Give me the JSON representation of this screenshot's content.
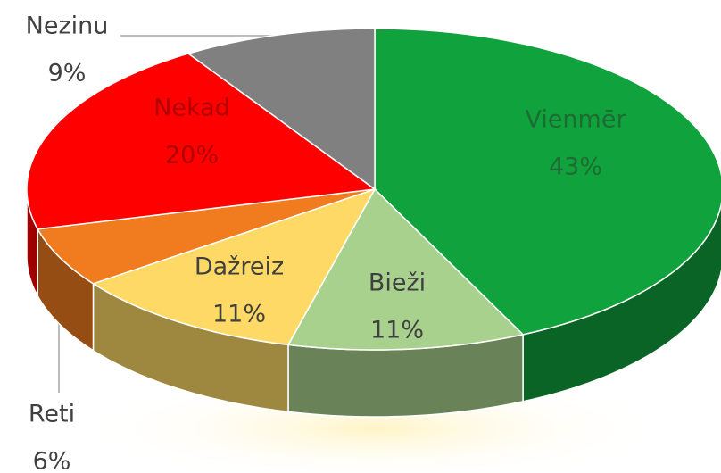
{
  "chart_data": {
    "type": "pie",
    "categories": [
      "Vienmēr",
      "Bieži",
      "Dažreiz",
      "Reti",
      "Nekad",
      "Nezinu"
    ],
    "values": [
      43,
      11,
      11,
      6,
      20,
      9
    ],
    "value_labels": [
      "43%",
      "11%",
      "11%",
      "6%",
      "20%",
      "9%"
    ],
    "colors": [
      "#10a23c",
      "#a9d18e",
      "#ffd966",
      "#f07c1f",
      "#ff0000",
      "#808080"
    ]
  }
}
